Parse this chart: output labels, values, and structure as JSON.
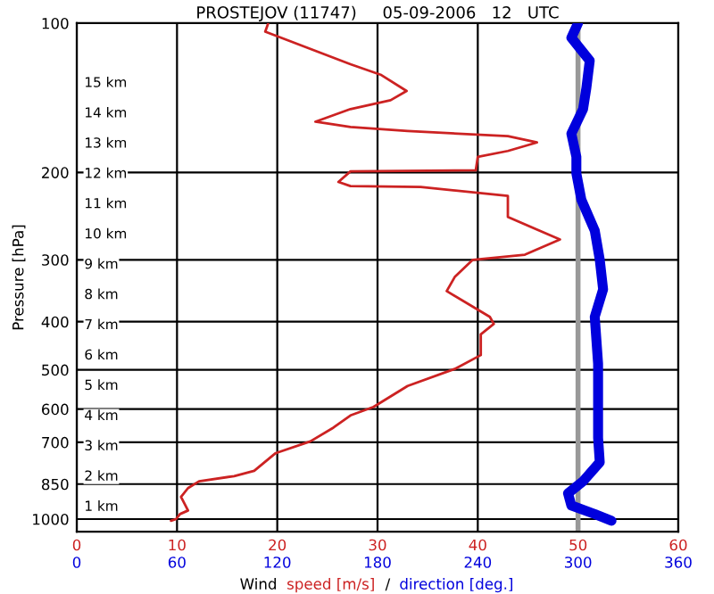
{
  "chart_data": {
    "type": "line",
    "orientation": "horizontal",
    "title": "PROSTEJOV (11747)     05-09-2006   12   UTC",
    "xlabel": "Wind",
    "ylabel": "Pressure [hPa]",
    "annotations": [
      "/"
    ],
    "log": "y",
    "grid": true,
    "legend": false,
    "xlim": [
      0,
      60
    ],
    "xticks": [
      0,
      10,
      20,
      30,
      40,
      50,
      60
    ],
    "x2lim": [
      0,
      360
    ],
    "x2ticks": [
      0,
      60,
      120,
      180,
      240,
      300,
      360
    ],
    "ylim": [
      1060,
      100
    ],
    "yticks": [
      100,
      200,
      300,
      400,
      500,
      600,
      700,
      850,
      1000
    ],
    "y2lim": [
      0.14,
      16.94
    ],
    "y2ticks": [
      {
        "value": 1,
        "label": "1 km"
      },
      {
        "value": 2,
        "label": "2 km"
      },
      {
        "value": 3,
        "label": "3 km"
      },
      {
        "value": 4,
        "label": "4 km"
      },
      {
        "value": 5,
        "label": "5 km"
      },
      {
        "value": 6,
        "label": "6 km"
      },
      {
        "value": 7,
        "label": "7 km"
      },
      {
        "value": 8,
        "label": "8 km"
      },
      {
        "value": 9,
        "label": "9 km"
      },
      {
        "value": 10,
        "label": "10 km"
      },
      {
        "value": 11,
        "label": "11 km"
      },
      {
        "value": 12,
        "label": "12 km"
      },
      {
        "value": 13,
        "label": "13 km"
      },
      {
        "value": 14,
        "label": "14 km"
      },
      {
        "value": 15,
        "label": "15 km"
      }
    ],
    "ref_lines": [
      {
        "axis": "x",
        "value": 50,
        "color": "#999999"
      }
    ],
    "series": [
      {
        "name": "speed [m/s]",
        "color": "#cc2222",
        "x": [
          100,
          104,
          121,
          127,
          137,
          143,
          149,
          158,
          162,
          165,
          169,
          174,
          181,
          186,
          198,
          199,
          209,
          213,
          214,
          223,
          246,
          273,
          293,
          300,
          325,
          347,
          391,
          404,
          424,
          467,
          498,
          539,
          594,
          618,
          654,
          697,
          737,
          799,
          819,
          839,
          866,
          902,
          961,
          977,
          1000,
          1008
        ],
        "values": [
          19.1,
          18.8,
          27.3,
          30.3,
          32.9,
          31.3,
          27.3,
          23.8,
          27.3,
          33.0,
          43.0,
          45.9,
          43.0,
          40.0,
          39.8,
          27.3,
          26.1,
          27.3,
          34.3,
          43.0,
          43.0,
          48.2,
          44.7,
          39.5,
          37.7,
          36.9,
          41.2,
          41.6,
          40.3,
          40.3,
          37.7,
          33.0,
          29.6,
          27.3,
          25.6,
          23.3,
          19.8,
          17.7,
          15.7,
          12.2,
          11.1,
          10.4,
          11.1,
          10.3,
          9.9,
          9.4
        ]
      },
      {
        "name": "direction [deg.]",
        "color": "#0000dd",
        "axis": "x2",
        "x": [
          100,
          107,
          119,
          135,
          149,
          167,
          186,
          201,
          227,
          262,
          300,
          344,
          391,
          486,
          686,
          768,
          839,
          887,
          939,
          977,
          1008
        ],
        "values": [
          300,
          296,
          307,
          305,
          303,
          296,
          299,
          299,
          302,
          310,
          313,
          315,
          310,
          312,
          312,
          313,
          303,
          294,
          296,
          310,
          320
        ]
      }
    ]
  }
}
